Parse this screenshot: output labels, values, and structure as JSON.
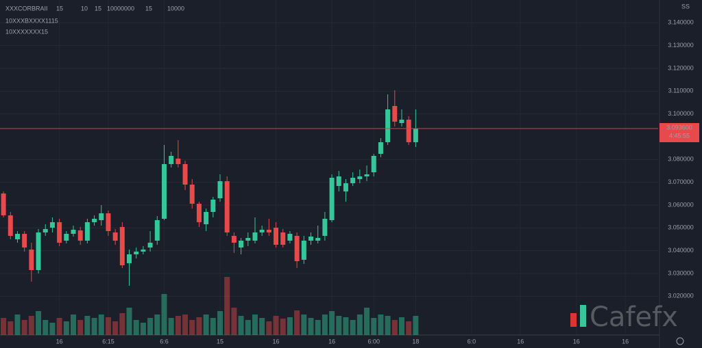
{
  "chart_data": {
    "type": "candlestick",
    "title": "XXXCORBRAII",
    "header_values": [
      "15",
      "10",
      "15",
      "10000000",
      "15",
      "10000"
    ],
    "subtitle_lines": [
      "10XXXBXXXX1115",
      "10XXXXXXX15"
    ],
    "up_color": "#35c79a",
    "down_color": "#e8494a",
    "grid": true,
    "x": [
      0,
      1,
      2,
      3,
      4,
      5,
      6,
      7,
      8,
      9,
      10,
      11,
      12,
      13,
      14,
      15,
      16,
      17,
      18,
      19,
      20,
      21,
      22,
      23,
      24,
      25,
      26,
      27,
      28,
      29,
      30,
      31,
      32,
      33,
      34,
      35,
      36,
      37,
      38,
      39,
      40,
      41,
      42,
      43,
      44,
      45,
      46,
      47,
      48,
      49,
      50,
      51,
      52,
      53,
      54,
      55,
      56,
      57,
      58,
      59
    ],
    "open": [
      3.0651,
      3.0555,
      3.045,
      3.0474,
      3.0405,
      3.0315,
      3.048,
      3.0501,
      3.0525,
      3.0444,
      3.0474,
      3.0489,
      3.0444,
      3.0525,
      3.0534,
      3.0564,
      3.048,
      3.0504,
      3.0345,
      3.0384,
      3.0396,
      3.0414,
      3.0444,
      3.054,
      3.078,
      3.0804,
      3.078,
      3.069,
      3.0606,
      3.0516,
      3.057,
      3.063,
      3.0705,
      3.0465,
      3.0414,
      3.0444,
      3.0444,
      3.048,
      3.0492,
      3.0501,
      3.048,
      3.0444,
      3.0465,
      3.036,
      3.0444,
      3.0444,
      3.0465,
      3.0534,
      3.0684,
      3.066,
      3.0696,
      3.0714,
      3.0726,
      3.0744,
      3.0825,
      3.0876,
      3.1035,
      3.096,
      3.0975,
      3.0876
    ],
    "high": [
      3.066,
      3.057,
      3.0486,
      3.0486,
      3.0435,
      3.0495,
      3.0516,
      3.0546,
      3.054,
      3.0486,
      3.051,
      3.0504,
      3.054,
      3.0555,
      3.06,
      3.0576,
      3.0495,
      3.0525,
      3.0405,
      3.0414,
      3.042,
      3.0486,
      3.0552,
      3.0864,
      3.0834,
      3.0885,
      3.0795,
      3.0714,
      3.0615,
      3.0585,
      3.0636,
      3.0735,
      3.0726,
      3.048,
      3.0456,
      3.048,
      3.0546,
      3.051,
      3.054,
      3.0525,
      3.0495,
      3.0486,
      3.048,
      3.0465,
      3.048,
      3.051,
      3.057,
      3.0735,
      3.075,
      3.0714,
      3.0744,
      3.0756,
      3.0774,
      3.0825,
      3.0894,
      3.1086,
      3.1104,
      3.102,
      3.099,
      3.102
    ],
    "low": [
      3.0546,
      3.045,
      3.0435,
      3.0396,
      3.0264,
      3.03,
      3.0465,
      3.048,
      3.042,
      3.0432,
      3.0462,
      3.0426,
      3.0432,
      3.051,
      3.051,
      3.0465,
      3.0426,
      3.0324,
      3.0246,
      3.0366,
      3.0384,
      3.0396,
      3.0426,
      3.0534,
      3.0765,
      3.0765,
      3.0666,
      3.0585,
      3.0504,
      3.0486,
      3.0546,
      3.0615,
      3.0465,
      3.039,
      3.0384,
      3.042,
      3.0432,
      3.0465,
      3.0465,
      3.0414,
      3.0414,
      3.0432,
      3.0324,
      3.0342,
      3.0426,
      3.0432,
      3.0444,
      3.0525,
      3.066,
      3.0615,
      3.0684,
      3.0696,
      3.0705,
      3.0726,
      3.081,
      3.0864,
      3.0945,
      3.0945,
      3.0864,
      3.0855
    ],
    "close": [
      3.0555,
      3.0465,
      3.0474,
      3.0414,
      3.0315,
      3.048,
      3.0495,
      3.0525,
      3.0435,
      3.0474,
      3.0492,
      3.0444,
      3.0525,
      3.054,
      3.0564,
      3.0486,
      3.0444,
      3.0336,
      3.0384,
      3.0396,
      3.0405,
      3.0435,
      3.0534,
      3.078,
      3.0816,
      3.078,
      3.069,
      3.0606,
      3.0525,
      3.057,
      3.0624,
      3.0705,
      3.048,
      3.0435,
      3.0444,
      3.0456,
      3.048,
      3.0492,
      3.048,
      3.0426,
      3.0426,
      3.0474,
      3.0354,
      3.0444,
      3.0462,
      3.0456,
      3.054,
      3.072,
      3.0726,
      3.0696,
      3.072,
      3.0726,
      3.0735,
      3.0816,
      3.0876,
      3.102,
      3.0966,
      3.0975,
      3.0876,
      3.0936
    ],
    "volume": [
      25,
      20,
      30,
      22,
      28,
      35,
      22,
      18,
      25,
      20,
      30,
      22,
      28,
      25,
      30,
      26,
      20,
      32,
      40,
      22,
      18,
      25,
      30,
      60,
      25,
      28,
      30,
      22,
      26,
      30,
      25,
      35,
      85,
      40,
      28,
      22,
      30,
      25,
      20,
      28,
      24,
      26,
      36,
      30,
      25,
      22,
      30,
      35,
      28,
      26,
      22,
      30,
      40,
      25,
      30,
      28,
      22,
      26,
      20,
      28
    ],
    "volume_lim": [
      0,
      100
    ],
    "xlim": [
      -0.5,
      93.7
    ],
    "xticks": [
      {
        "value": 8,
        "label": "16"
      },
      {
        "value": 15,
        "label": "6:15"
      },
      {
        "value": 23,
        "label": "6:6"
      },
      {
        "value": 31,
        "label": "15"
      },
      {
        "value": 39,
        "label": "16"
      },
      {
        "value": 47,
        "label": "16"
      },
      {
        "value": 53,
        "label": "6:00"
      },
      {
        "value": 59,
        "label": "18"
      },
      {
        "value": 67,
        "label": "6:0"
      },
      {
        "value": 74,
        "label": "16"
      },
      {
        "value": 82,
        "label": "16"
      },
      {
        "value": 89,
        "label": "16"
      }
    ],
    "ylim": [
      3.003,
      3.15
    ],
    "yticks": [
      {
        "value": 3.14,
        "label": "3.140000"
      },
      {
        "value": 3.13,
        "label": "3.130000"
      },
      {
        "value": 3.12,
        "label": "3.120000"
      },
      {
        "value": 3.11,
        "label": "3.110000"
      },
      {
        "value": 3.1,
        "label": "3.100000"
      },
      {
        "value": 3.08,
        "label": "3.080000"
      },
      {
        "value": 3.07,
        "label": "3.070000"
      },
      {
        "value": 3.06,
        "label": "3.060000"
      },
      {
        "value": 3.05,
        "label": "3.050000"
      },
      {
        "value": 3.04,
        "label": "3.040000"
      },
      {
        "value": 3.03,
        "label": "3.030000"
      },
      {
        "value": 3.02,
        "label": "3.020000"
      }
    ],
    "last_price": {
      "value": 3.0936,
      "label": "3.093600"
    },
    "countdown": "4:45:55",
    "watermark": "Cafefx",
    "corner_label": "SS"
  }
}
